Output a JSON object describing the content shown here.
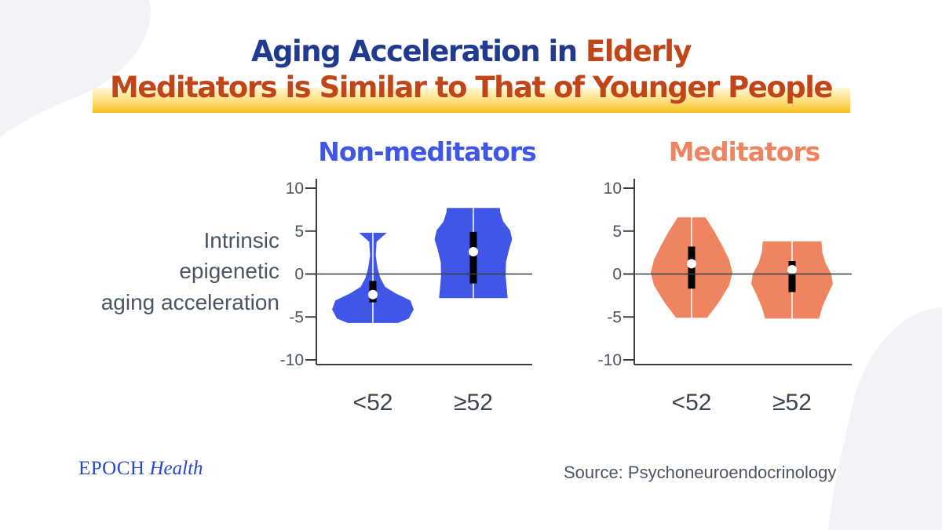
{
  "title": {
    "line1_part1": "Aging Acceleration in ",
    "line1_part2": "Elderly",
    "line2": "Meditators is Similar to That of Younger People"
  },
  "colors": {
    "title_blue": "#1f3a8f",
    "title_orange": "#c0461a",
    "non_meditators": "#3f56e6",
    "meditators": "#ef8460",
    "axis": "#3a3f47",
    "text_gray": "#4a5563"
  },
  "brand": {
    "name": "EPOCH",
    "section": "Health"
  },
  "source": "Source: Psychoneuroendocrinology",
  "chart_data": {
    "type": "violin",
    "ylabel_lines": [
      "Intrinsic",
      "epigenetic",
      "aging acceleration"
    ],
    "ylim": [
      -10,
      10
    ],
    "yticks": [
      10,
      5,
      0,
      -5,
      -10
    ],
    "tick_labels": [
      "10",
      "5",
      "0",
      "-5",
      "-10"
    ],
    "categories": [
      "<52",
      "≥52"
    ],
    "panels": [
      {
        "name": "Non-meditators",
        "groups": [
          {
            "category": "<52",
            "median": -2.4,
            "q1": -3.3,
            "q3": -0.8,
            "min": -5.7,
            "max": 4.8
          },
          {
            "category": "≥52",
            "median": 2.6,
            "q1": -1.1,
            "q3": 4.9,
            "min": -2.8,
            "max": 7.7
          }
        ]
      },
      {
        "name": "Meditators",
        "groups": [
          {
            "category": "<52",
            "median": 1.2,
            "q1": -1.7,
            "q3": 3.2,
            "min": -5.1,
            "max": 6.6
          },
          {
            "category": "≥52",
            "median": 0.5,
            "q1": -2.1,
            "q3": 1.5,
            "min": -5.2,
            "max": 3.8
          }
        ]
      }
    ]
  }
}
